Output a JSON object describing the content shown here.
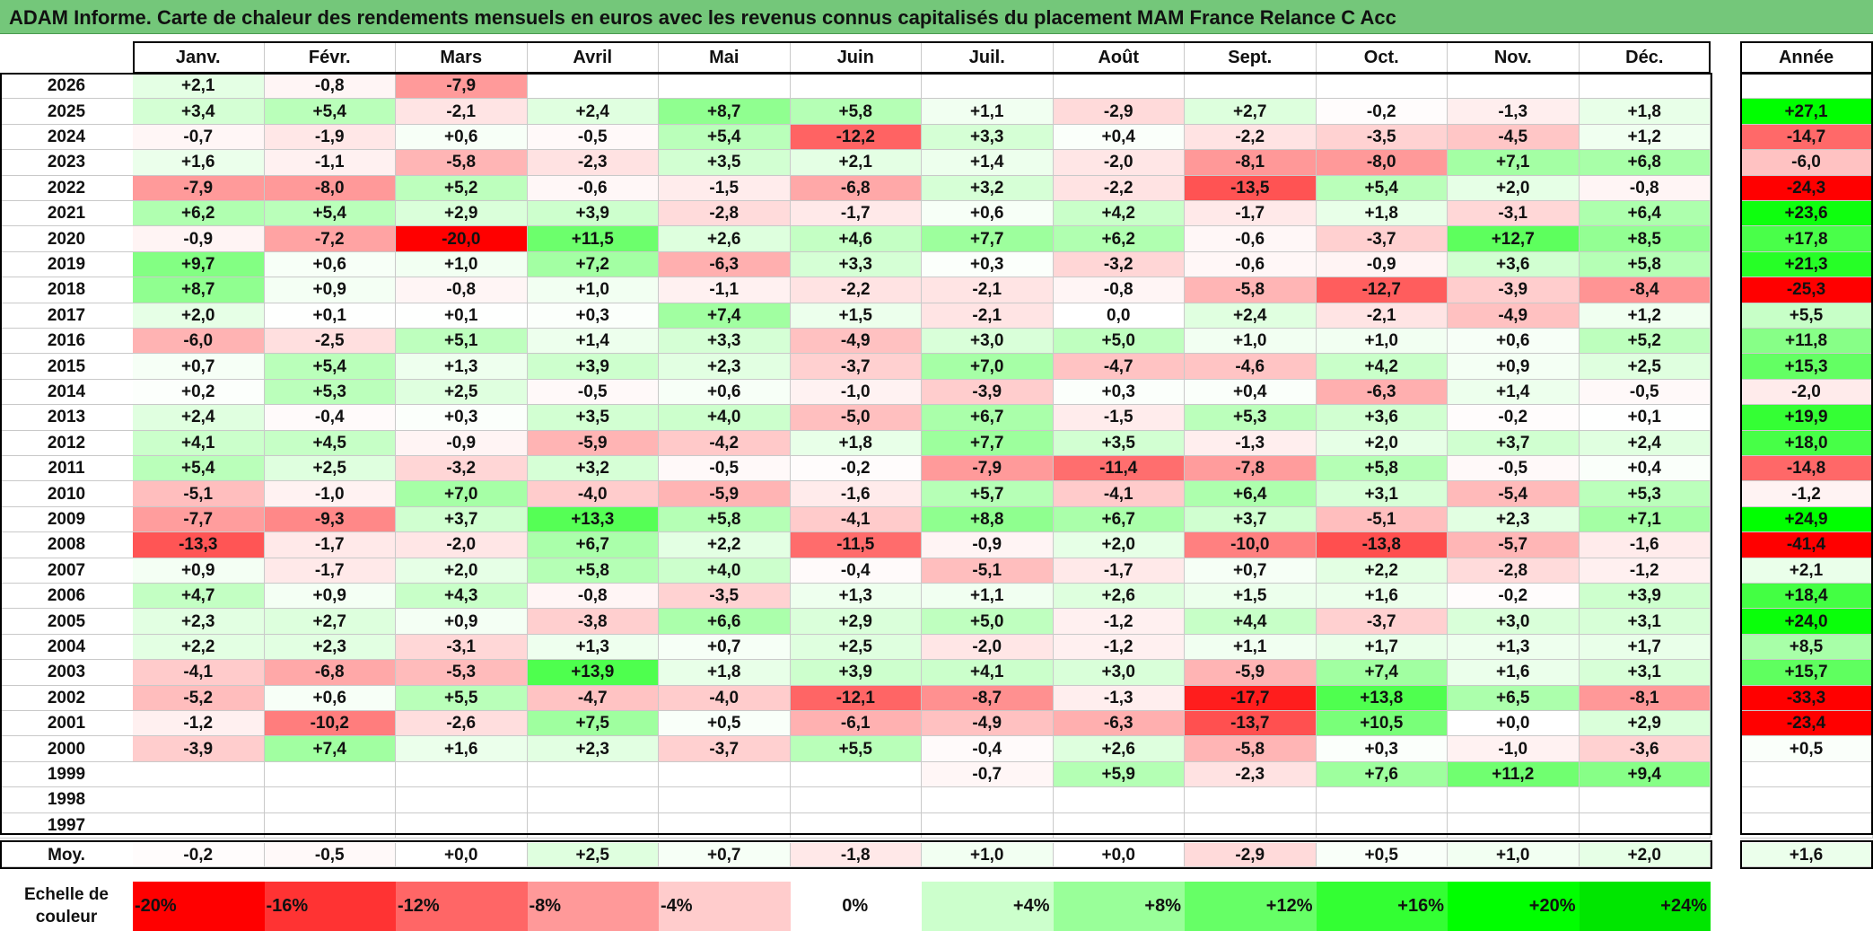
{
  "title": "ADAM Informe. Carte de chaleur des rendements mensuels en euros avec les revenus connus capitalisés du placement MAM France Relance C Acc",
  "chart_data": {
    "type": "heatmap",
    "months": [
      "Janv.",
      "Févr.",
      "Mars",
      "Avril",
      "Mai",
      "Juin",
      "Juil.",
      "Août",
      "Sept.",
      "Oct.",
      "Nov.",
      "Déc."
    ],
    "annual_header": "Année",
    "rows": [
      {
        "year": "2026",
        "values": [
          "+2,1",
          "-0,8",
          "-7,9",
          "",
          "",
          "",
          "",
          "",
          "",
          "",
          "",
          ""
        ],
        "annual": ""
      },
      {
        "year": "2025",
        "values": [
          "+3,4",
          "+5,4",
          "-2,1",
          "+2,4",
          "+8,7",
          "+5,8",
          "+1,1",
          "-2,9",
          "+2,7",
          "-0,2",
          "-1,3",
          "+1,8"
        ],
        "annual": "+27,1"
      },
      {
        "year": "2024",
        "values": [
          "-0,7",
          "-1,9",
          "+0,6",
          "-0,5",
          "+5,4",
          "-12,2",
          "+3,3",
          "+0,4",
          "-2,2",
          "-3,5",
          "-4,5",
          "+1,2"
        ],
        "annual": "-14,7"
      },
      {
        "year": "2023",
        "values": [
          "+1,6",
          "-1,1",
          "-5,8",
          "-2,3",
          "+3,5",
          "+2,1",
          "+1,4",
          "-2,0",
          "-8,1",
          "-8,0",
          "+7,1",
          "+6,8"
        ],
        "annual": "-6,0"
      },
      {
        "year": "2022",
        "values": [
          "-7,9",
          "-8,0",
          "+5,2",
          "-0,6",
          "-1,5",
          "-6,8",
          "+3,2",
          "-2,2",
          "-13,5",
          "+5,4",
          "+2,0",
          "-0,8"
        ],
        "annual": "-24,3"
      },
      {
        "year": "2021",
        "values": [
          "+6,2",
          "+5,4",
          "+2,9",
          "+3,9",
          "-2,8",
          "-1,7",
          "+0,6",
          "+4,2",
          "-1,7",
          "+1,8",
          "-3,1",
          "+6,4"
        ],
        "annual": "+23,6"
      },
      {
        "year": "2020",
        "values": [
          "-0,9",
          "-7,2",
          "-20,0",
          "+11,5",
          "+2,6",
          "+4,6",
          "+7,7",
          "+6,2",
          "-0,6",
          "-3,7",
          "+12,7",
          "+8,5"
        ],
        "annual": "+17,8"
      },
      {
        "year": "2019",
        "values": [
          "+9,7",
          "+0,6",
          "+1,0",
          "+7,2",
          "-6,3",
          "+3,3",
          "+0,3",
          "-3,2",
          "-0,6",
          "-0,9",
          "+3,6",
          "+5,8"
        ],
        "annual": "+21,3"
      },
      {
        "year": "2018",
        "values": [
          "+8,7",
          "+0,9",
          "-0,8",
          "+1,0",
          "-1,1",
          "-2,2",
          "-2,1",
          "-0,8",
          "-5,8",
          "-12,7",
          "-3,9",
          "-8,4"
        ],
        "annual": "-25,3"
      },
      {
        "year": "2017",
        "values": [
          "+2,0",
          "+0,1",
          "+0,1",
          "+0,3",
          "+7,4",
          "+1,5",
          "-2,1",
          "0,0",
          "+2,4",
          "-2,1",
          "-4,9",
          "+1,2"
        ],
        "annual": "+5,5"
      },
      {
        "year": "2016",
        "values": [
          "-6,0",
          "-2,5",
          "+5,1",
          "+1,4",
          "+3,3",
          "-4,9",
          "+3,0",
          "+5,0",
          "+1,0",
          "+1,0",
          "+0,6",
          "+5,2"
        ],
        "annual": "+11,8"
      },
      {
        "year": "2015",
        "values": [
          "+0,7",
          "+5,4",
          "+1,3",
          "+3,9",
          "+2,3",
          "-3,7",
          "+7,0",
          "-4,7",
          "-4,6",
          "+4,2",
          "+0,9",
          "+2,5"
        ],
        "annual": "+15,3"
      },
      {
        "year": "2014",
        "values": [
          "+0,2",
          "+5,3",
          "+2,5",
          "-0,5",
          "+0,6",
          "-1,0",
          "-3,9",
          "+0,3",
          "+0,4",
          "-6,3",
          "+1,4",
          "-0,5"
        ],
        "annual": "-2,0"
      },
      {
        "year": "2013",
        "values": [
          "+2,4",
          "-0,4",
          "+0,3",
          "+3,5",
          "+4,0",
          "-5,0",
          "+6,7",
          "-1,5",
          "+5,3",
          "+3,6",
          "-0,2",
          "+0,1"
        ],
        "annual": "+19,9"
      },
      {
        "year": "2012",
        "values": [
          "+4,1",
          "+4,5",
          "-0,9",
          "-5,9",
          "-4,2",
          "+1,8",
          "+7,7",
          "+3,5",
          "-1,3",
          "+2,0",
          "+3,7",
          "+2,4"
        ],
        "annual": "+18,0"
      },
      {
        "year": "2011",
        "values": [
          "+5,4",
          "+2,5",
          "-3,2",
          "+3,2",
          "-0,5",
          "-0,2",
          "-7,9",
          "-11,4",
          "-7,8",
          "+5,8",
          "-0,5",
          "+0,4"
        ],
        "annual": "-14,8"
      },
      {
        "year": "2010",
        "values": [
          "-5,1",
          "-1,0",
          "+7,0",
          "-4,0",
          "-5,9",
          "-1,6",
          "+5,7",
          "-4,1",
          "+6,4",
          "+3,1",
          "-5,4",
          "+5,3"
        ],
        "annual": "-1,2"
      },
      {
        "year": "2009",
        "values": [
          "-7,7",
          "-9,3",
          "+3,7",
          "+13,3",
          "+5,8",
          "-4,1",
          "+8,8",
          "+6,7",
          "+3,7",
          "-5,1",
          "+2,3",
          "+7,1"
        ],
        "annual": "+24,9"
      },
      {
        "year": "2008",
        "values": [
          "-13,3",
          "-1,7",
          "-2,0",
          "+6,7",
          "+2,2",
          "-11,5",
          "-0,9",
          "+2,0",
          "-10,0",
          "-13,8",
          "-5,7",
          "-1,6"
        ],
        "annual": "-41,4"
      },
      {
        "year": "2007",
        "values": [
          "+0,9",
          "-1,7",
          "+2,0",
          "+5,8",
          "+4,0",
          "-0,4",
          "-5,1",
          "-1,7",
          "+0,7",
          "+2,2",
          "-2,8",
          "-1,2"
        ],
        "annual": "+2,1"
      },
      {
        "year": "2006",
        "values": [
          "+4,7",
          "+0,9",
          "+4,3",
          "-0,8",
          "-3,5",
          "+1,3",
          "+1,1",
          "+2,6",
          "+1,5",
          "+1,6",
          "-0,2",
          "+3,9"
        ],
        "annual": "+18,4"
      },
      {
        "year": "2005",
        "values": [
          "+2,3",
          "+2,7",
          "+0,9",
          "-3,8",
          "+6,6",
          "+2,9",
          "+5,0",
          "-1,2",
          "+4,4",
          "-3,7",
          "+3,0",
          "+3,1"
        ],
        "annual": "+24,0"
      },
      {
        "year": "2004",
        "values": [
          "+2,2",
          "+2,3",
          "-3,1",
          "+1,3",
          "+0,7",
          "+2,5",
          "-2,0",
          "-1,2",
          "+1,1",
          "+1,7",
          "+1,3",
          "+1,7"
        ],
        "annual": "+8,5"
      },
      {
        "year": "2003",
        "values": [
          "-4,1",
          "-6,8",
          "-5,3",
          "+13,9",
          "+1,8",
          "+3,9",
          "+4,1",
          "+3,0",
          "-5,9",
          "+7,4",
          "+1,6",
          "+3,1"
        ],
        "annual": "+15,7"
      },
      {
        "year": "2002",
        "values": [
          "-5,2",
          "+0,6",
          "+5,5",
          "-4,7",
          "-4,0",
          "-12,1",
          "-8,7",
          "-1,3",
          "-17,7",
          "+13,8",
          "+6,5",
          "-8,1"
        ],
        "annual": "-33,3"
      },
      {
        "year": "2001",
        "values": [
          "-1,2",
          "-10,2",
          "-2,6",
          "+7,5",
          "+0,5",
          "-6,1",
          "-4,9",
          "-6,3",
          "-13,7",
          "+10,5",
          "+0,0",
          "+2,9"
        ],
        "annual": "-23,4"
      },
      {
        "year": "2000",
        "values": [
          "-3,9",
          "+7,4",
          "+1,6",
          "+2,3",
          "-3,7",
          "+5,5",
          "-0,4",
          "+2,6",
          "-5,8",
          "+0,3",
          "-1,0",
          "-3,6"
        ],
        "annual": "+0,5"
      },
      {
        "year": "1999",
        "values": [
          "",
          "",
          "",
          "",
          "",
          "",
          "-0,7",
          "+5,9",
          "-2,3",
          "+7,6",
          "+11,2",
          "+9,4"
        ],
        "annual": ""
      },
      {
        "year": "1998",
        "values": [
          "",
          "",
          "",
          "",
          "",
          "",
          "",
          "",
          "",
          "",
          "",
          ""
        ],
        "annual": ""
      },
      {
        "year": "1997",
        "values": [
          "",
          "",
          "",
          "",
          "",
          "",
          "",
          "",
          "",
          "",
          "",
          ""
        ],
        "annual": ""
      }
    ],
    "average": {
      "label": "Moy.",
      "values": [
        "-0,2",
        "-0,5",
        "+0,0",
        "+2,5",
        "+0,7",
        "-1,8",
        "+1,0",
        "+0,0",
        "-2,9",
        "+0,5",
        "+1,0",
        "+2,0"
      ],
      "annual": "+1,6"
    },
    "legend": {
      "label": "Echelle de couleur",
      "steps": [
        {
          "label": "-20%",
          "value": -20,
          "color": "#ff0000"
        },
        {
          "label": "-16%",
          "value": -16,
          "color": "#ff3333"
        },
        {
          "label": "-12%",
          "value": -12,
          "color": "#ff6666"
        },
        {
          "label": "-8%",
          "value": -8,
          "color": "#ff9999"
        },
        {
          "label": "-4%",
          "value": -4,
          "color": "#ffcccc"
        },
        {
          "label": "0%",
          "value": 0,
          "color": "#ffffff"
        },
        {
          "label": "+4%",
          "value": 4,
          "color": "#ccffcc"
        },
        {
          "label": "+8%",
          "value": 8,
          "color": "#99ff99"
        },
        {
          "label": "+12%",
          "value": 12,
          "color": "#66ff66"
        },
        {
          "label": "+16%",
          "value": 16,
          "color": "#33ff33"
        },
        {
          "label": "+20%",
          "value": 20,
          "color": "#00ff00"
        },
        {
          "label": "+24%",
          "value": 24,
          "color": "#00e600"
        }
      ]
    }
  }
}
